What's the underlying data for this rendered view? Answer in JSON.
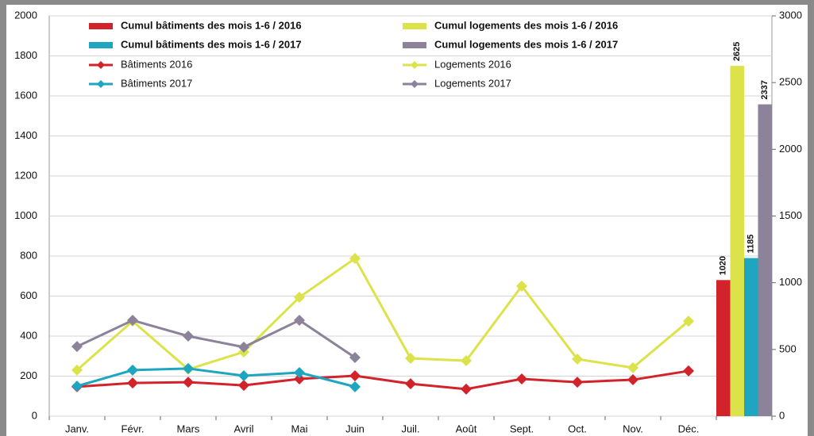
{
  "chart_data": {
    "type": "combo",
    "categories": [
      "Janv.",
      "Févr.",
      "Mars",
      "Avril",
      "Mai",
      "Juin",
      "Juil.",
      "Août",
      "Sept.",
      "Oct.",
      "Nov.",
      "Déc.",
      null
    ],
    "ylim": [
      0,
      2000
    ],
    "yticks": [
      0,
      200,
      400,
      600,
      800,
      1000,
      1200,
      1400,
      1600,
      1800,
      2000
    ],
    "y2lim": [
      0,
      3000
    ],
    "y2ticks": [
      0,
      500,
      1000,
      1500,
      2000,
      2500,
      3000
    ],
    "grid": true,
    "series": [
      {
        "name": "Cumul bâtiments des mois 1-6 / 2016",
        "type": "bar",
        "axis": "y2",
        "color": "#d2232a",
        "values": [
          null,
          null,
          null,
          null,
          null,
          null,
          null,
          null,
          null,
          null,
          null,
          null,
          1020
        ]
      },
      {
        "name": "Cumul logements des mois 1-6 / 2016",
        "type": "bar",
        "axis": "y2",
        "color": "#dce34a",
        "values": [
          null,
          null,
          null,
          null,
          null,
          null,
          null,
          null,
          null,
          null,
          null,
          null,
          2625
        ]
      },
      {
        "name": "Cumul bâtiments des mois 1-6 / 2017",
        "type": "bar",
        "axis": "y2",
        "color": "#1ea6c0",
        "values": [
          null,
          null,
          null,
          null,
          null,
          null,
          null,
          null,
          null,
          null,
          null,
          null,
          1185
        ]
      },
      {
        "name": "Cumul logements des mois 1-6 / 2017",
        "type": "bar",
        "axis": "y2",
        "color": "#8c8299",
        "values": [
          null,
          null,
          null,
          null,
          null,
          null,
          null,
          null,
          null,
          null,
          null,
          null,
          2337
        ]
      },
      {
        "name": "Bâtiments 2016",
        "type": "line",
        "color": "#d2232a",
        "values": [
          147,
          166,
          170,
          154,
          186,
          202,
          162,
          135,
          186,
          170,
          182,
          226,
          null
        ]
      },
      {
        "name": "Logements 2016",
        "type": "line",
        "color": "#dce34a",
        "values": [
          230,
          475,
          234,
          321,
          594,
          788,
          289,
          277,
          650,
          285,
          242,
          475,
          null
        ]
      },
      {
        "name": "Bâtiments 2017",
        "type": "line",
        "color": "#1ea6c0",
        "values": [
          150,
          230,
          238,
          202,
          218,
          147,
          null,
          null,
          null,
          null,
          null,
          null,
          null
        ]
      },
      {
        "name": "Logements 2017",
        "type": "line",
        "color": "#8c8299",
        "values": [
          348,
          479,
          400,
          345,
          479,
          293,
          null,
          null,
          null,
          null,
          null,
          null,
          null
        ]
      }
    ]
  }
}
